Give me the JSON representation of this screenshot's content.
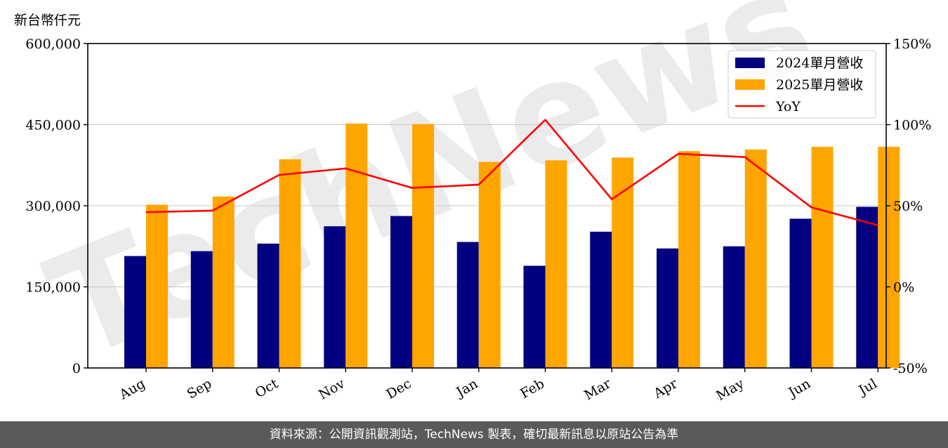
{
  "unit_label": "新台幣仟元",
  "footer_text": "資料來源：公開資訊觀測站，TechNews 製表，確切最新訊息以原站公告為準",
  "watermark_text": "TechNews",
  "chart_data": {
    "type": "bar",
    "categories": [
      "Aug",
      "Sep",
      "Oct",
      "Nov",
      "Dec",
      "Jan",
      "Feb",
      "Mar",
      "Apr",
      "May",
      "Jun",
      "Jul"
    ],
    "series": [
      {
        "name": "2024單月營收",
        "type": "bar",
        "axis": "left",
        "color": "#000080",
        "values": [
          207000,
          216000,
          230000,
          262000,
          281000,
          233000,
          189000,
          252000,
          221000,
          225000,
          276000,
          298000
        ]
      },
      {
        "name": "2025單月營收",
        "type": "bar",
        "axis": "left",
        "color": "#FFA500",
        "values": [
          302000,
          317000,
          386000,
          452000,
          451000,
          381000,
          384000,
          389000,
          401000,
          404000,
          409000,
          409000
        ]
      },
      {
        "name": "YoY",
        "type": "line",
        "axis": "right",
        "color": "#FF0000",
        "values": [
          46,
          47,
          69,
          73,
          61,
          63,
          103,
          54,
          82,
          80,
          49,
          38
        ]
      }
    ],
    "ylim": [
      0,
      600000
    ],
    "y_ticks": [
      "0",
      "150,000",
      "300,000",
      "450,000",
      "600,000"
    ],
    "y_tick_values": [
      0,
      150000,
      300000,
      450000,
      600000
    ],
    "y2lim": [
      -50,
      150
    ],
    "y2_ticks": [
      "-50%",
      "0%",
      "50%",
      "100%",
      "150%"
    ],
    "y2_tick_values": [
      -50,
      0,
      50,
      100,
      150
    ],
    "grid": true,
    "legend_position": "top-right"
  }
}
